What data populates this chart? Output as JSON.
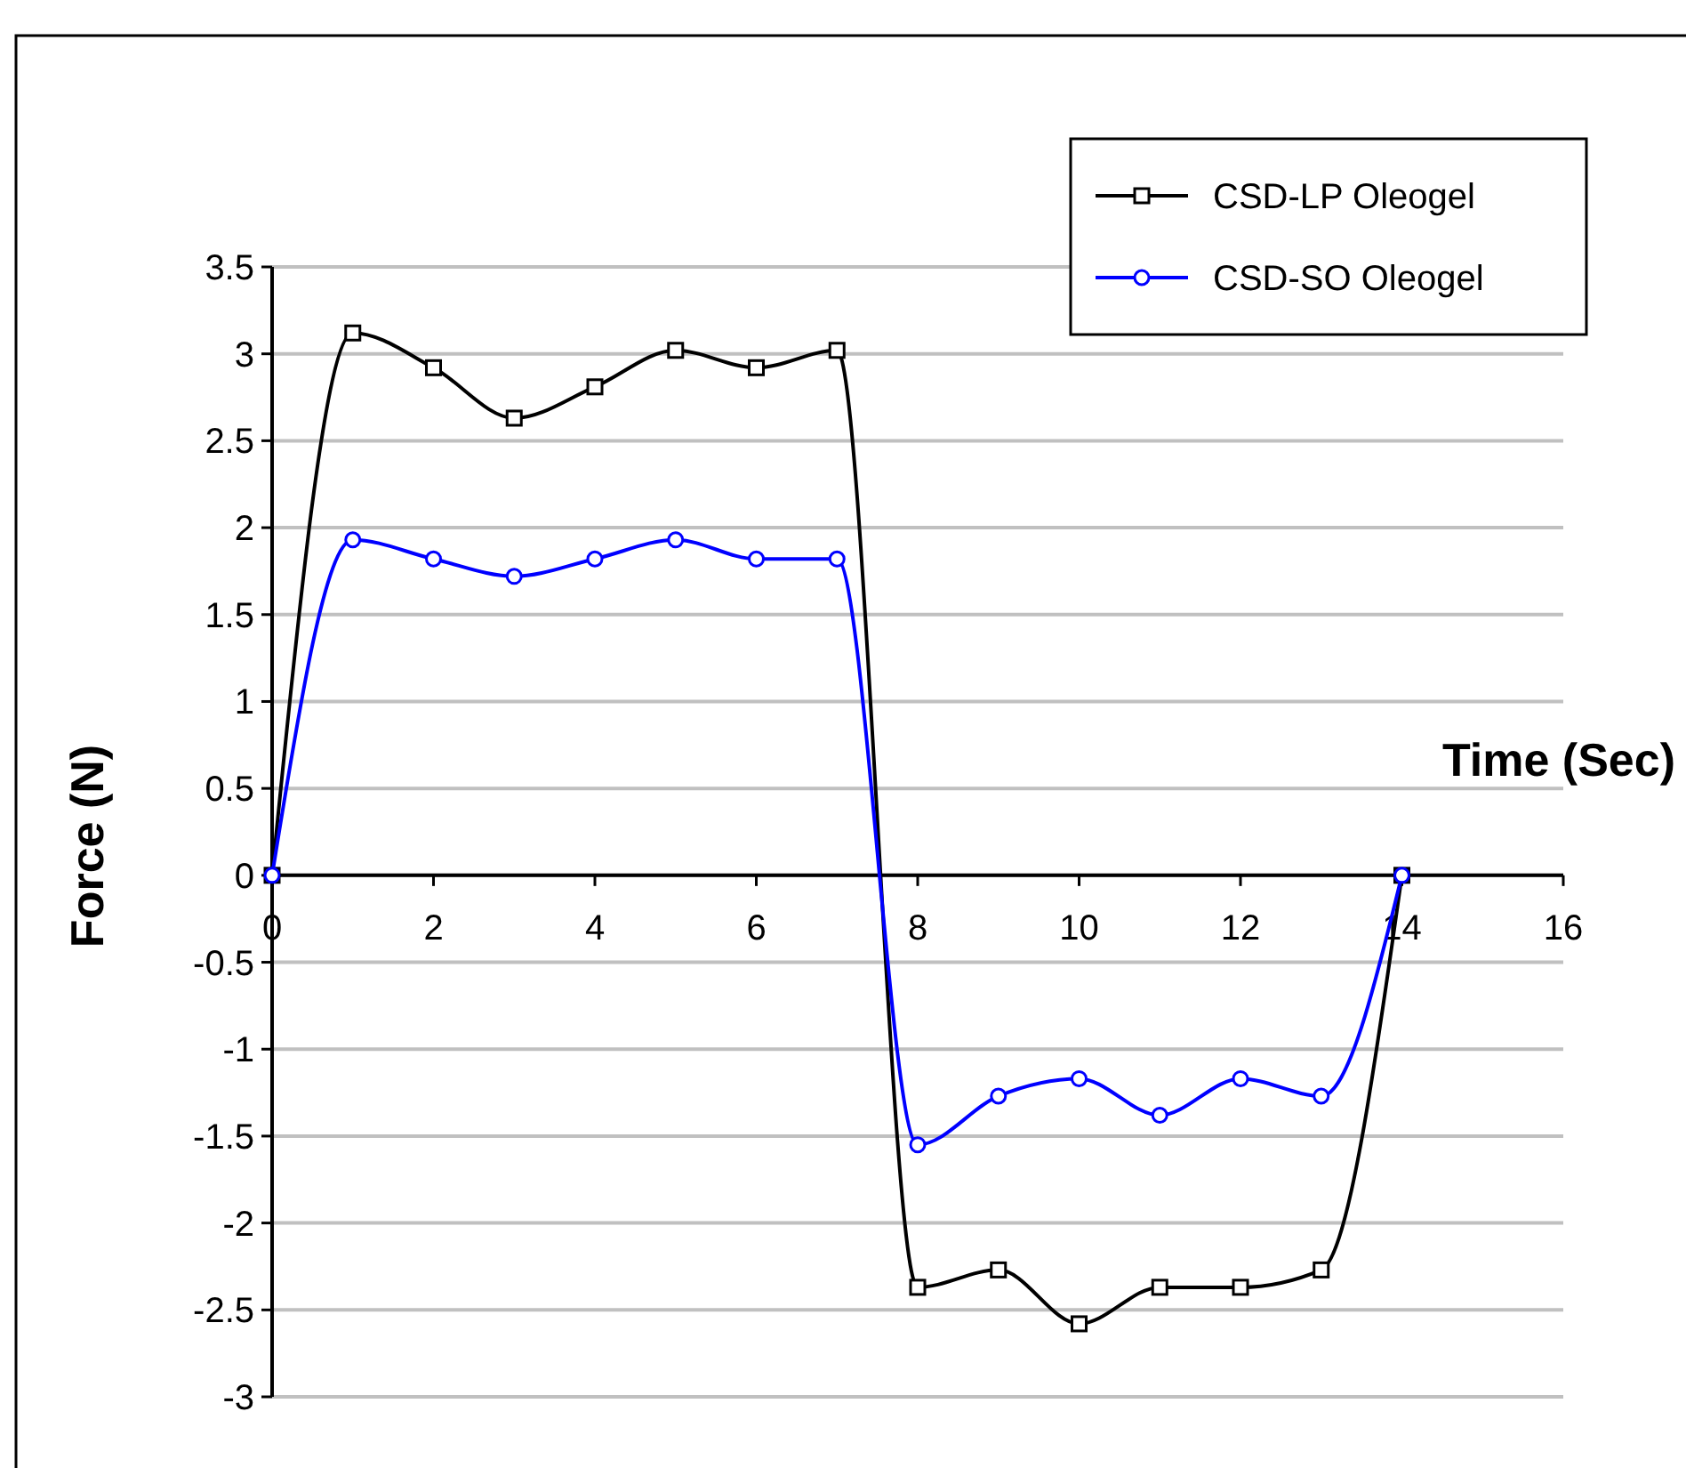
{
  "chart_data": {
    "type": "line",
    "xlabel": "Time (Sec)",
    "ylabel": "Force (N)",
    "x": [
      0,
      1,
      2,
      3,
      4,
      5,
      6,
      7,
      8,
      9,
      10,
      11,
      12,
      13,
      14
    ],
    "series": [
      {
        "name": "CSD-LP Oleogel",
        "color": "#000000",
        "marker": "square",
        "values": [
          0,
          3.12,
          2.92,
          2.63,
          2.81,
          3.02,
          2.92,
          3.02,
          -2.37,
          -2.27,
          -2.58,
          -2.37,
          -2.37,
          -2.27,
          0
        ]
      },
      {
        "name": "CSD-SO Oleogel",
        "color": "#0000ff",
        "marker": "circle",
        "values": [
          0,
          1.93,
          1.82,
          1.72,
          1.82,
          1.93,
          1.82,
          1.82,
          -1.55,
          -1.27,
          -1.17,
          -1.38,
          -1.17,
          -1.27,
          0
        ]
      }
    ],
    "xlim": [
      0,
      16
    ],
    "xticks": [
      0,
      2,
      4,
      6,
      8,
      10,
      12,
      14,
      16
    ],
    "ylim": [
      -3,
      3.5
    ],
    "yticks": [
      -3,
      -2.5,
      -2,
      -1.5,
      -1,
      -0.5,
      0,
      0.5,
      1,
      1.5,
      2,
      2.5,
      3,
      3.5
    ],
    "grid": "y",
    "legend": "top right",
    "line_style": "solid"
  }
}
